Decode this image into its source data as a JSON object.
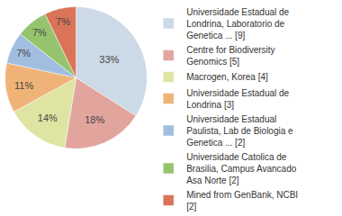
{
  "chart_data": {
    "type": "pie",
    "categories": [
      "Universidade Estadual de Londrina, Laboratorio de Genetica ... [9]",
      "Centre for Biodiversity Genomics [5]",
      "Macrogen, Korea [4]",
      "Universidade Estadual de Londrina [3]",
      "Universidade Estadual Paulista, Lab de Biologia e Genetica ... [2]",
      "Universidade Catolica de Brasilia, Campus Avancado Asa Norte [2]",
      "Mined from GenBank, NCBI [2]"
    ],
    "values": [
      33,
      18,
      14,
      11,
      7,
      7,
      7
    ],
    "value_labels": [
      "33%",
      "18%",
      "14%",
      "11%",
      "7%",
      "7%",
      "7%"
    ],
    "colors": [
      "#ccd9e6",
      "#e2a59e",
      "#dfe4a3",
      "#f0b377",
      "#a1bee0",
      "#96c46e",
      "#da7459"
    ],
    "data_labels": true,
    "legend": "right"
  }
}
